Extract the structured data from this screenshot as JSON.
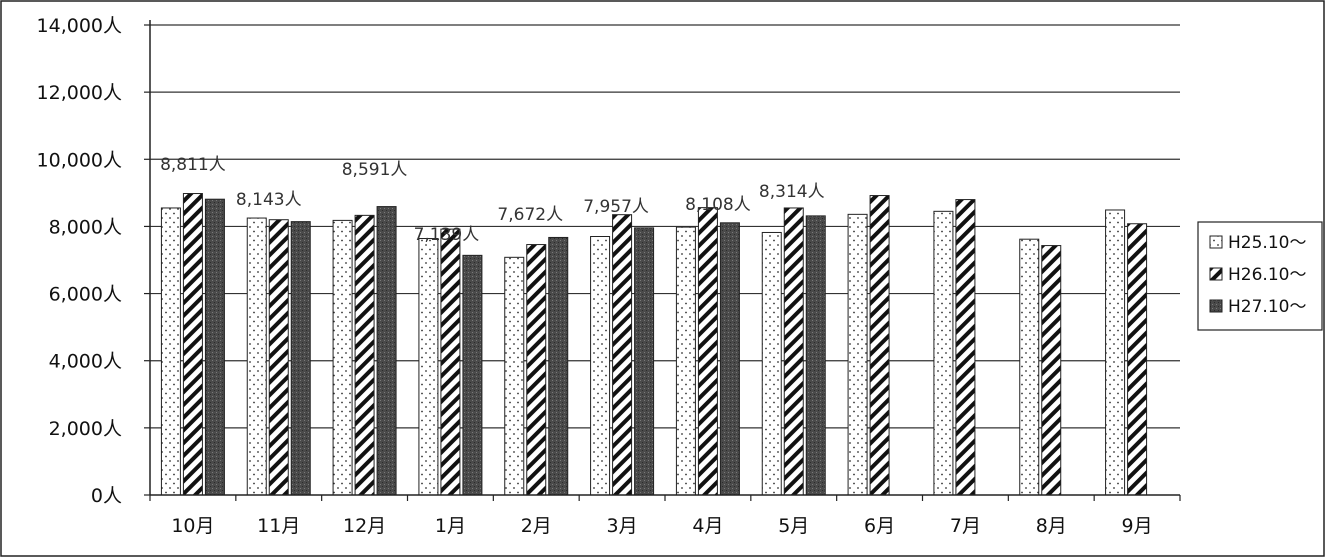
{
  "chart_data": {
    "type": "bar",
    "categories": [
      "10月",
      "11月",
      "12月",
      "1月",
      "2月",
      "3月",
      "4月",
      "5月",
      "6月",
      "7月",
      "8月",
      "9月"
    ],
    "ylim": [
      0,
      14000
    ],
    "yticks": [
      0,
      2000,
      4000,
      6000,
      8000,
      10000,
      12000,
      14000
    ],
    "ytick_labels": [
      "0人",
      "2,000人",
      "4,000人",
      "6,000人",
      "8,000人",
      "10,000人",
      "12,000人",
      "14,000人"
    ],
    "grid": true,
    "legend_position": "right",
    "series": [
      {
        "name": "H25.10〜",
        "pattern": "dots",
        "values": [
          8550,
          8250,
          8180,
          7640,
          7080,
          7700,
          7980,
          7820,
          8360,
          8450,
          7620,
          8490
        ]
      },
      {
        "name": "H26.10〜",
        "pattern": "diagonal-stripes",
        "values": [
          8980,
          8200,
          8330,
          7920,
          7460,
          8350,
          8560,
          8550,
          8920,
          8800,
          7430,
          8080
        ]
      },
      {
        "name": "H27.10〜",
        "pattern": "dark-gray",
        "values": [
          8811,
          8143,
          8591,
          7139,
          7672,
          7957,
          8108,
          8314,
          null,
          null,
          null,
          null
        ],
        "data_labels": [
          "8,811人",
          "8,143人",
          "8,591人",
          "7,139人",
          "7,672人",
          "7,957人",
          "8,108人",
          "8,314人"
        ]
      }
    ]
  }
}
